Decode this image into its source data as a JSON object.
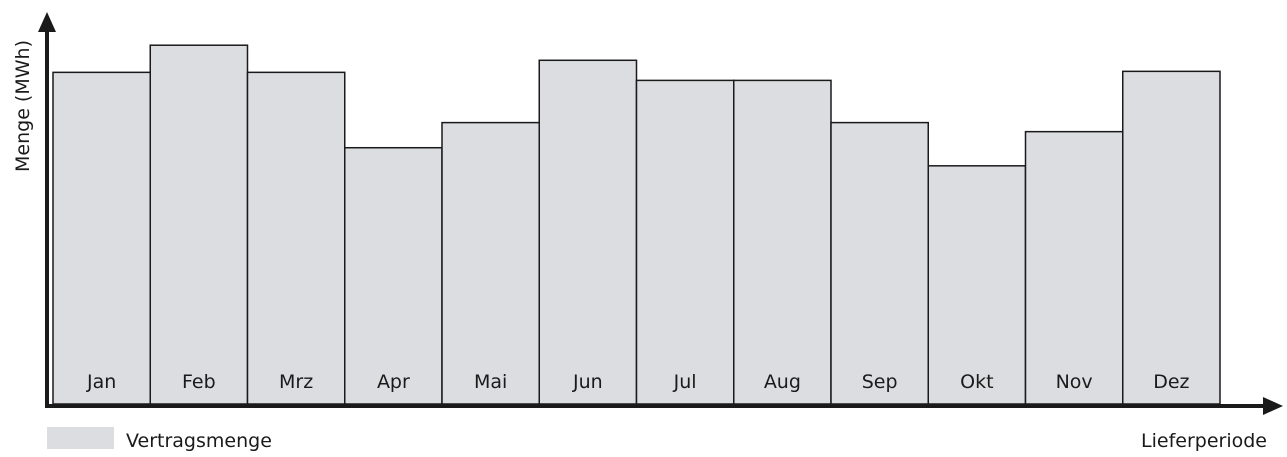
{
  "chart_data": {
    "type": "bar",
    "categories": [
      "Jan",
      "Feb",
      "Mrz",
      "Apr",
      "Mai",
      "Jun",
      "Jul",
      "Aug",
      "Sep",
      "Okt",
      "Nov",
      "Dez"
    ],
    "series": [
      {
        "name": "Vertragsmenge",
        "values": [
          330,
          357,
          330,
          255,
          280,
          342,
          322,
          322,
          280,
          237,
          271,
          331
        ]
      }
    ],
    "ylabel": "Menge (MWh)",
    "xlabel": "Lieferperiode",
    "ylim": [
      0,
      400
    ],
    "grid": false,
    "legend": "bottom-left",
    "colors": {
      "bar_fill": "#dcdde0",
      "bar_stroke": "#1a1a1a",
      "axis": "#1a1a1a"
    }
  }
}
